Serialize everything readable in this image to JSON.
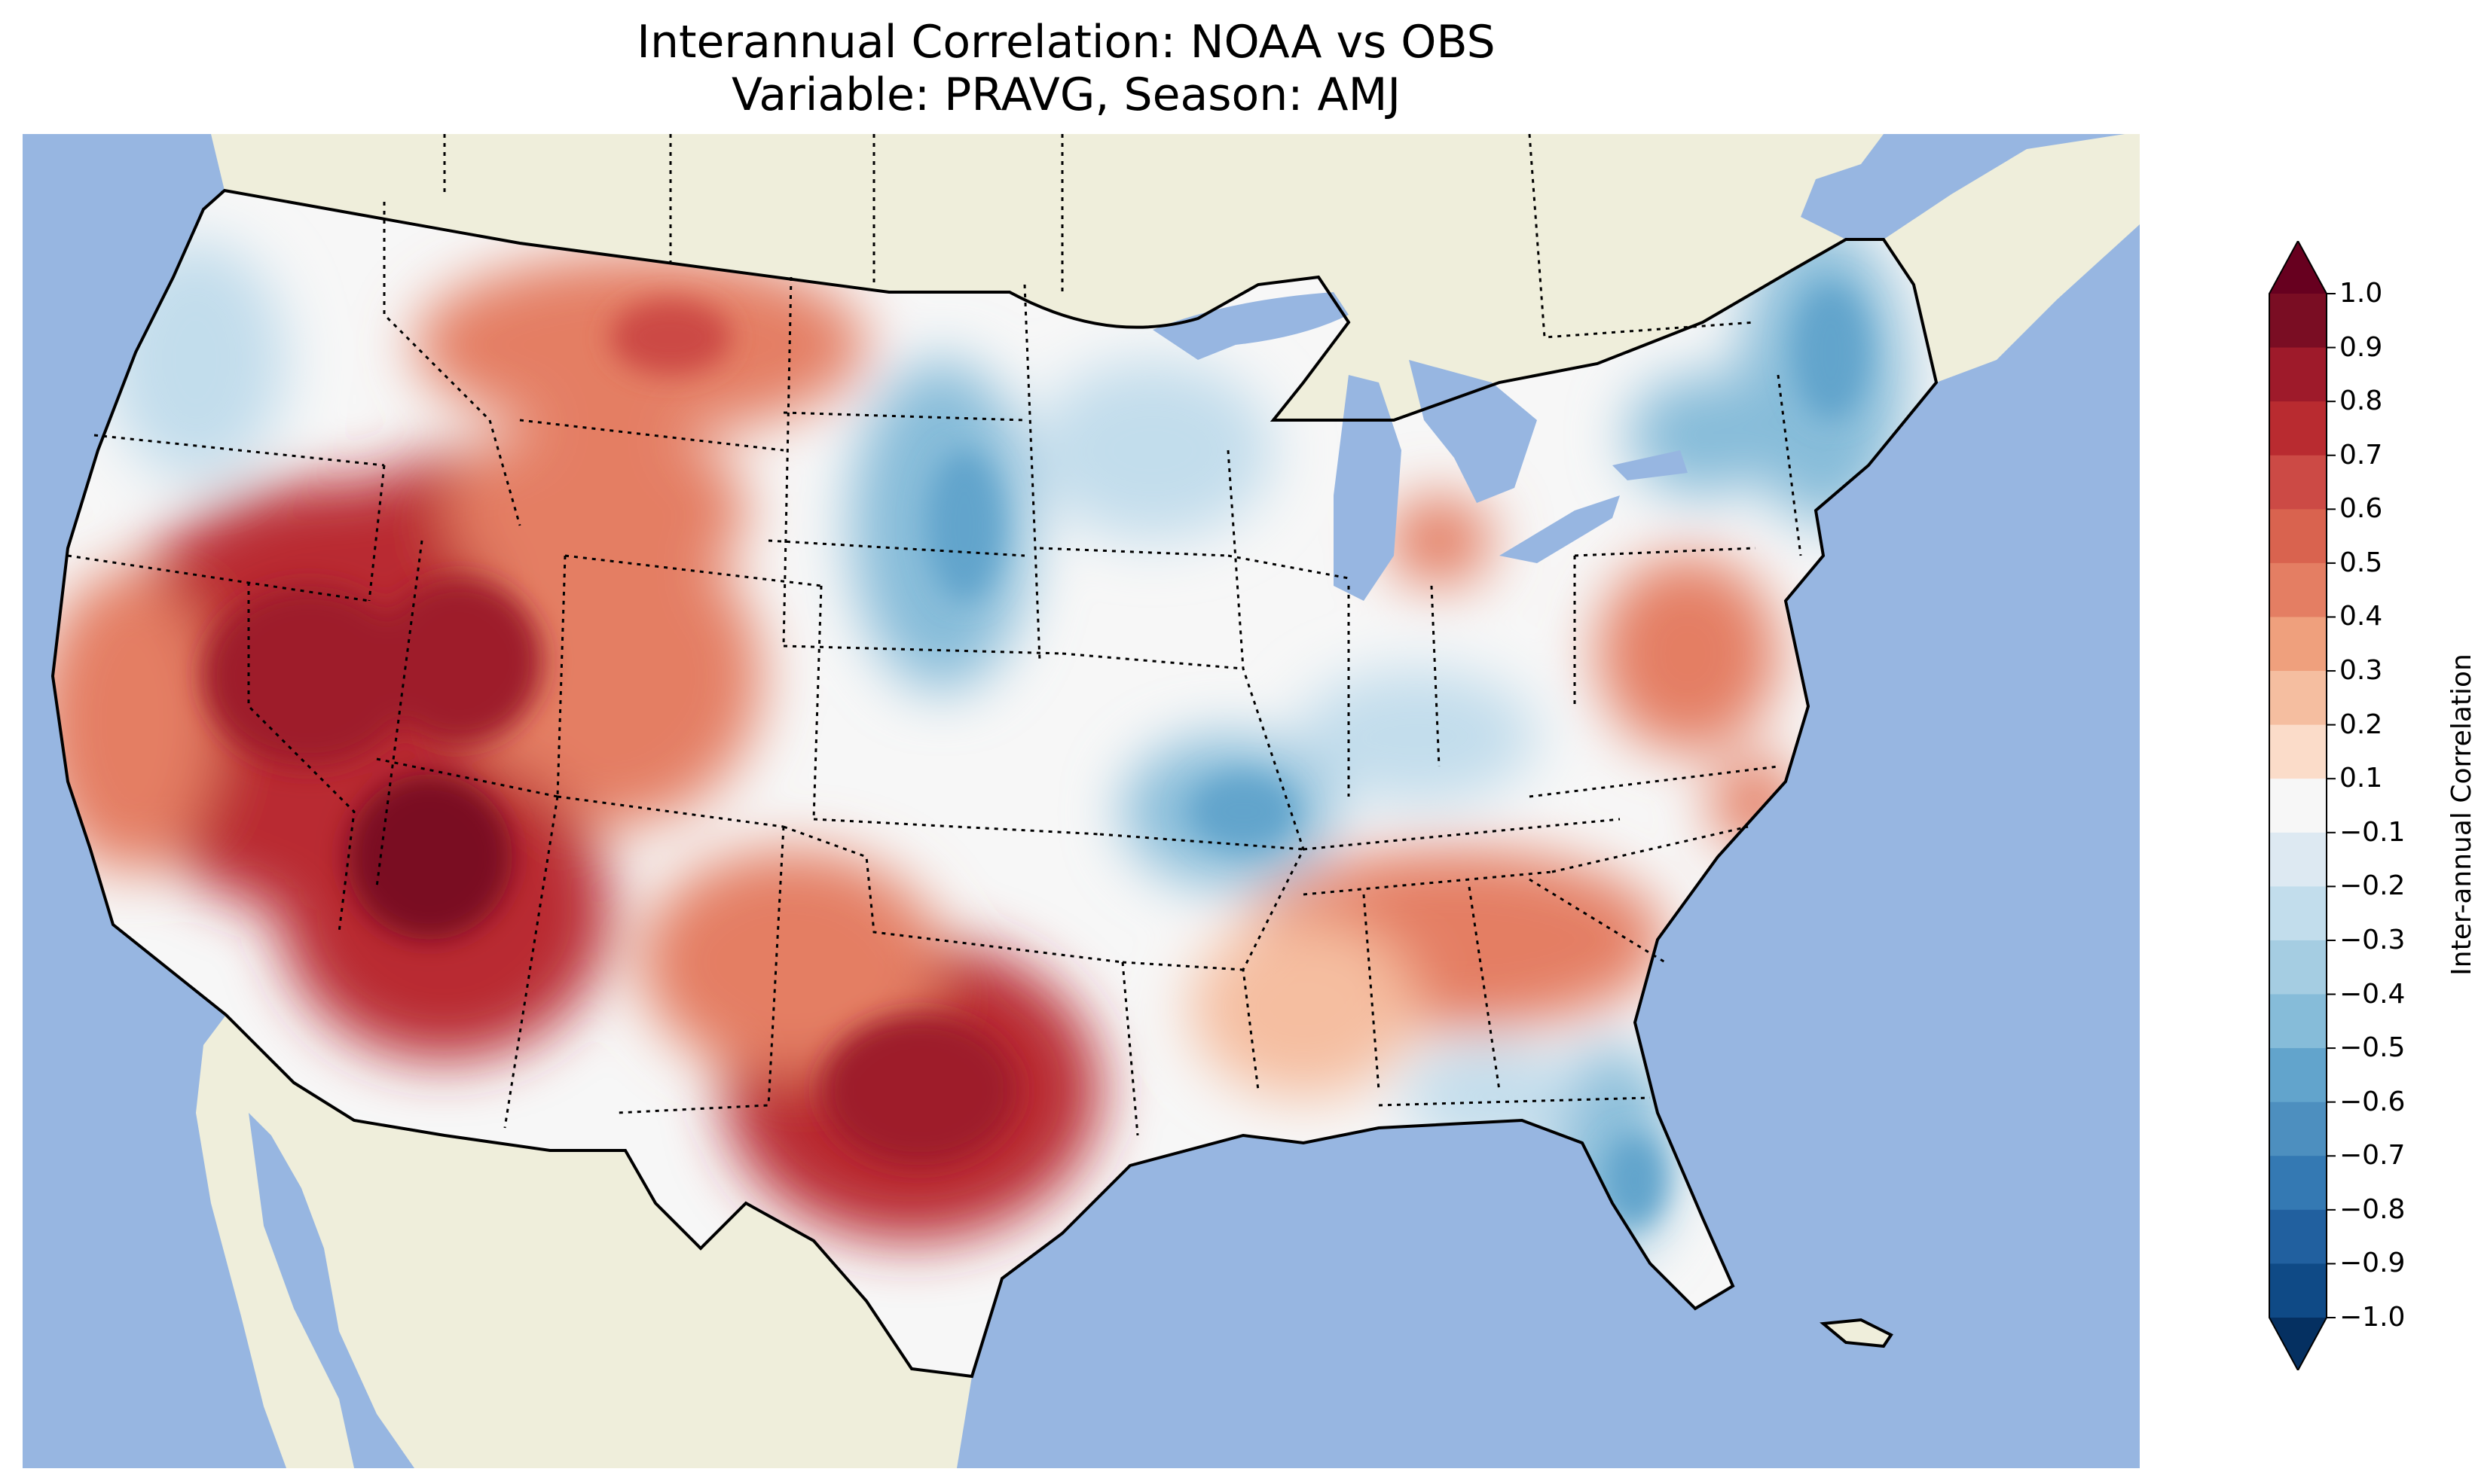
{
  "title": {
    "line1": "Interannual Correlation: NOAA vs OBS",
    "line2": "Variable: PRAVG, Season: AMJ"
  },
  "colorbar": {
    "label": "Inter-annual Correlation",
    "ticks": [
      "1.0",
      "0.9",
      "0.8",
      "0.7",
      "0.6",
      "0.5",
      "0.4",
      "0.3",
      "0.2",
      "0.1",
      "−0.1",
      "−0.2",
      "−0.3",
      "−0.4",
      "−0.5",
      "−0.6",
      "−0.7",
      "−0.8",
      "−0.9",
      "−1.0"
    ],
    "levels_top_to_bottom": [
      1.0,
      0.9,
      0.8,
      0.7,
      0.6,
      0.5,
      0.4,
      0.3,
      0.2,
      0.1,
      -0.1,
      -0.2,
      -0.3,
      -0.4,
      -0.5,
      -0.6,
      -0.7,
      -0.8,
      -0.9,
      -1.0
    ],
    "bin_colors_top_to_bottom": [
      "#7a0d23",
      "#9e1a2a",
      "#b92b30",
      "#cc4a45",
      "#d9634f",
      "#e47e63",
      "#efa07d",
      "#f5bea0",
      "#fbdcc9",
      "#f7f7f7",
      "#dde9f2",
      "#c2ddec",
      "#a5cde2",
      "#86bcd9",
      "#62a4cc",
      "#4d8fbf",
      "#3479b3",
      "#21609f",
      "#0f4a86"
    ],
    "extend_max_color": "#67001f",
    "extend_min_color": "#053061"
  },
  "map": {
    "projection": "Lambert conformal, contiguous United States",
    "ocean_color": "#97b6e1",
    "land_color": "#efeedb",
    "field_colors": {
      "strong_positive": "#b92b30",
      "positive": "#e47e63",
      "weak_positive": "#f5bea0",
      "neutral": "#f7f7f7",
      "weak_negative": "#c2ddec",
      "negative": "#86bcd9",
      "strong_negative": "#4d8fbf"
    }
  }
}
